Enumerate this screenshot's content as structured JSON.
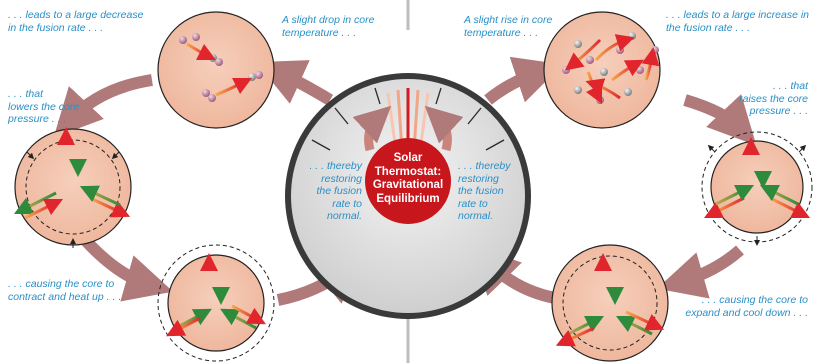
{
  "colors": {
    "caption": "#2a8fc6",
    "core_fill": "#f3c3ad",
    "cycle_arrow": "#b07a7a",
    "center_badge": "#c8161d",
    "divider": "#bdbdbd"
  },
  "center": {
    "title_lines": [
      "Solar",
      "Thermostat:",
      "Gravitational",
      "Equilibrium"
    ]
  },
  "left_cycle": {
    "captions": {
      "slight_drop": [
        "A slight drop in core",
        "temperature . . ."
      ],
      "large_decrease": [
        ". . . leads to a large decrease",
        "in the fusion rate . . ."
      ],
      "lowers_pressure": [
        ". . . that",
        "lowers the core",
        "pressure . . ."
      ],
      "contract": [
        ". . . causing the core to",
        "contract and heat up . . ."
      ],
      "restoring": [
        ". . . thereby",
        "restoring",
        "the fusion",
        "rate to",
        "normal."
      ]
    }
  },
  "right_cycle": {
    "captions": {
      "slight_rise": [
        "A slight rise in core",
        "temperature . . ."
      ],
      "large_increase": [
        ". . . leads to a large increase in",
        "the fusion rate . . ."
      ],
      "raises_pressure": [
        ". . . that",
        "raises the core",
        "pressure . . ."
      ],
      "expand": [
        ". . . causing the core to",
        "expand and cool down . . ."
      ],
      "restoring": [
        ". . . thereby",
        "restoring",
        "the fusion",
        "rate to",
        "normal."
      ]
    }
  },
  "icons": {
    "gauge": "thermostat-dial-icon",
    "particle": "atomic-nucleus-icon",
    "pressure_arrow": "pressure-arrow-icon"
  }
}
